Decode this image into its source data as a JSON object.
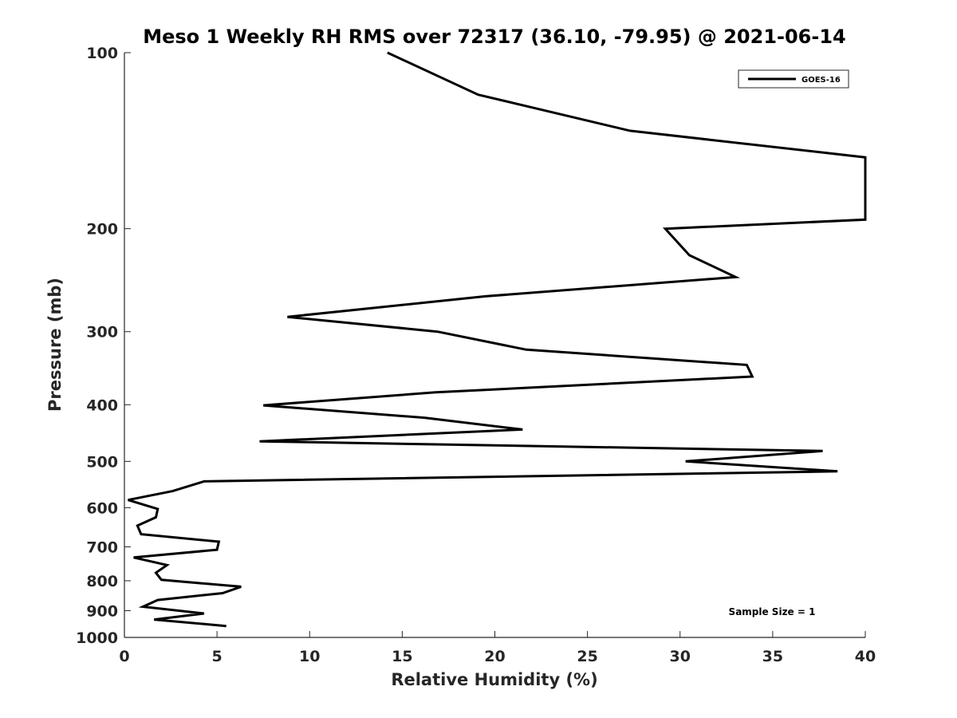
{
  "chart_data": {
    "type": "line",
    "title": "Meso 1 Weekly RH RMS over 72317 (36.10, -79.95) @ 2021-06-14",
    "xlabel": "Relative Humidity (%)",
    "ylabel": "Pressure (mb)",
    "xlim": [
      0,
      40
    ],
    "ylim": [
      100,
      1000
    ],
    "y_scale": "log",
    "y_reversed": true,
    "x_ticks": [
      "0",
      "5",
      "10",
      "15",
      "20",
      "25",
      "30",
      "35",
      "40"
    ],
    "y_ticks": [
      "100",
      "200",
      "300",
      "400",
      "500",
      "600",
      "700",
      "800",
      "900",
      "1000"
    ],
    "grid": false,
    "legend": {
      "position": "top-right",
      "entries": [
        "GOES-16"
      ]
    },
    "annotation": "Sample Size = 1",
    "series": [
      {
        "name": "GOES-16",
        "color": "#000000",
        "points": [
          [
            14.2,
            100
          ],
          [
            19.1,
            118
          ],
          [
            27.3,
            136
          ],
          [
            40.0,
            151
          ],
          [
            40.0,
            193
          ],
          [
            29.2,
            200
          ],
          [
            30.5,
            222
          ],
          [
            33.0,
            242
          ],
          [
            19.5,
            261
          ],
          [
            8.8,
            283
          ],
          [
            16.9,
            300
          ],
          [
            21.7,
            322
          ],
          [
            33.6,
            342
          ],
          [
            33.9,
            358
          ],
          [
            16.8,
            381
          ],
          [
            7.5,
            401
          ],
          [
            16.2,
            421
          ],
          [
            21.5,
            441
          ],
          [
            7.3,
            462
          ],
          [
            37.7,
            480
          ],
          [
            30.3,
            500
          ],
          [
            38.5,
            520
          ],
          [
            4.3,
            541
          ],
          [
            2.6,
            562
          ],
          [
            0.2,
            582
          ],
          [
            1.8,
            603
          ],
          [
            1.7,
            623
          ],
          [
            0.7,
            644
          ],
          [
            0.9,
            666
          ],
          [
            5.1,
            686
          ],
          [
            5.0,
            708
          ],
          [
            0.5,
            730
          ],
          [
            2.3,
            752
          ],
          [
            1.7,
            775
          ],
          [
            2.0,
            797
          ],
          [
            6.3,
            819
          ],
          [
            5.3,
            840
          ],
          [
            1.8,
            863
          ],
          [
            1.0,
            886
          ],
          [
            4.3,
            910
          ],
          [
            1.6,
            932
          ],
          [
            5.5,
            956
          ]
        ]
      }
    ]
  }
}
